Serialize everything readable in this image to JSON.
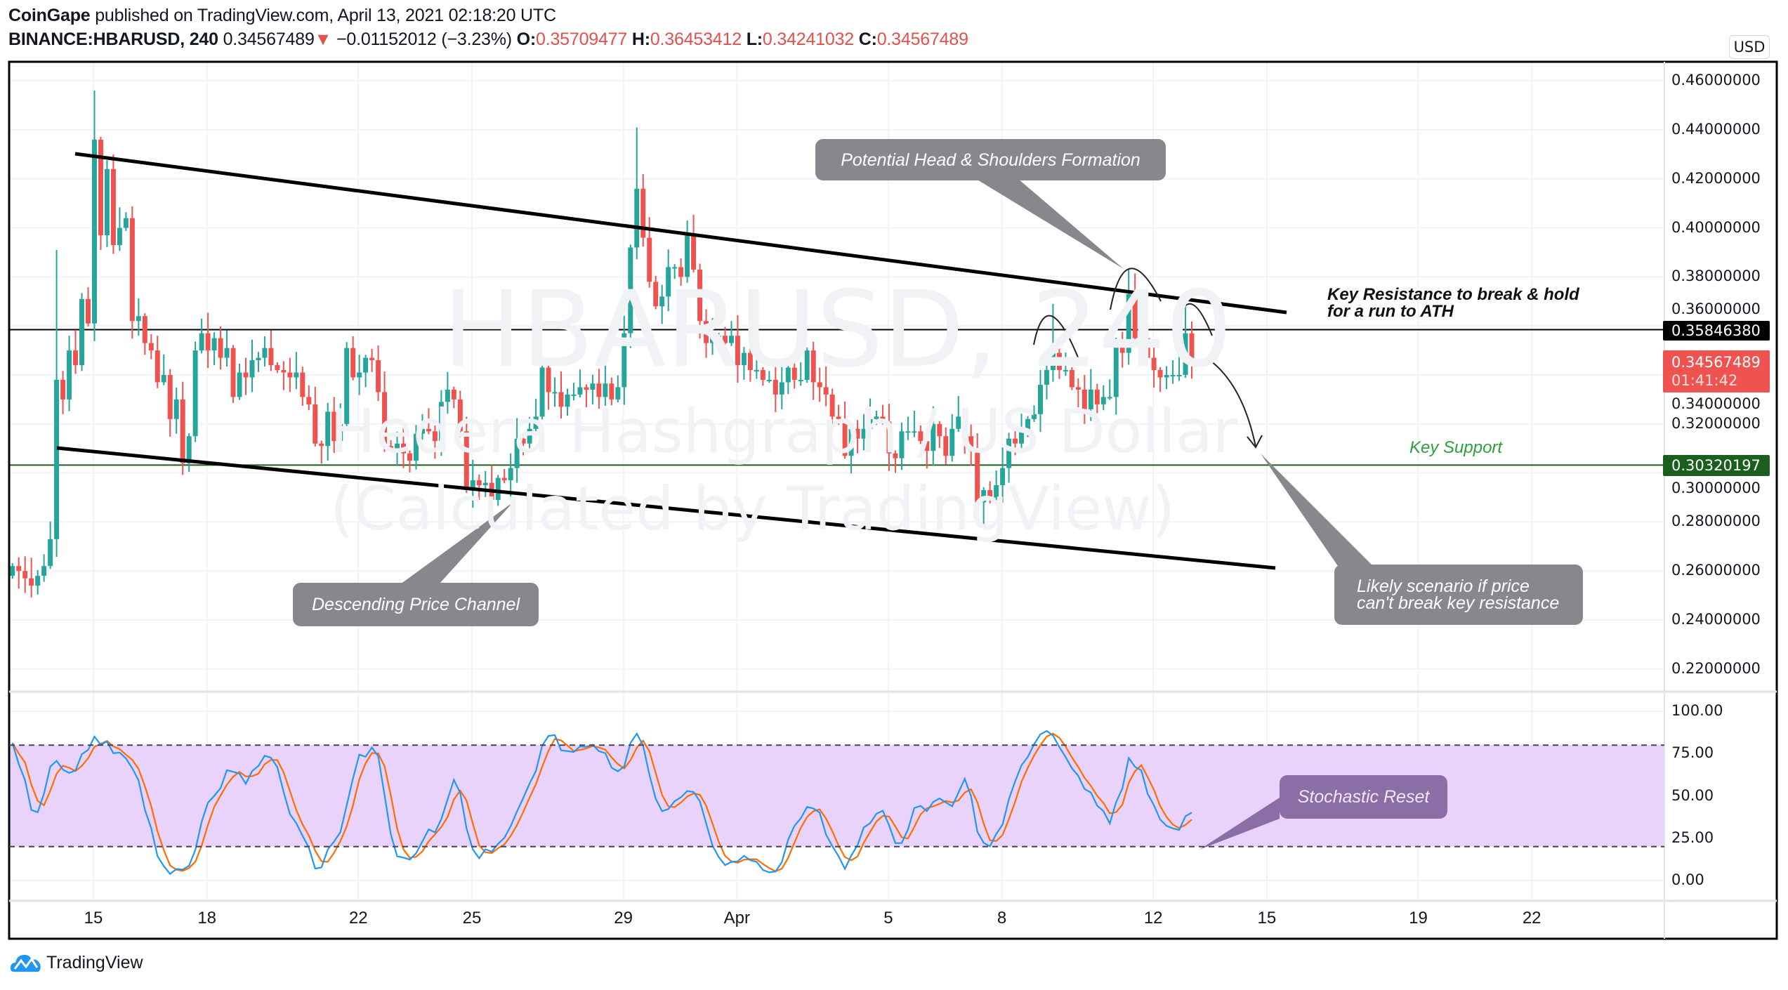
{
  "header": {
    "publisher": "CoinGape",
    "published_text": "published on TradingView.com, April 13, 2021 02:18:20 UTC",
    "symbol": "BINANCE:HBARUSD, 240",
    "last": "0.34567489",
    "direction_icon": "▼",
    "change": "−0.01152012 (−3.23%)",
    "o_label": "O:",
    "o": "0.35709477",
    "h_label": "H:",
    "h": "0.36453412",
    "l_label": "L:",
    "l": "0.34241032",
    "c_label": "C:",
    "c": "0.34567489"
  },
  "watermark": {
    "symbol": "HBARUSD, 240",
    "description": "Hedera Hashgraph / US Dollar (Calculated by TradingView)"
  },
  "currency_badge": "USD",
  "badges": {
    "resistance": "0.35846380",
    "last_price": "0.34567489",
    "countdown": "01:41:42",
    "support": "0.30320197"
  },
  "annotations": {
    "head_shoulders": "Potential Head & Shoulders Formation",
    "channel": "Descending Price Channel",
    "scenario_line1": "Likely scenario if price",
    "scenario_line2": "can't break key resistance",
    "key_resistance_line1": "Key Resistance to break & hold",
    "key_resistance_line2": "for a run to ATH",
    "key_support": "Key Support",
    "stoch_reset": "Stochastic Reset"
  },
  "colors": {
    "up": "#26a69a",
    "down": "#ef5350",
    "stoch_k": "#2196f3",
    "stoch_d": "#ff6d00",
    "band": "#e9d3fa",
    "support": "#1b5e20",
    "support_text": "#2e9e3e",
    "resistance": "#000000"
  },
  "branding": "TradingView",
  "chart_data": {
    "type": "candlestick",
    "title": "BINANCE:HBARUSD, 240",
    "interval": "240",
    "price_axis": {
      "ylim": [
        0.21,
        0.46
      ],
      "ticks": [
        "0.46000000",
        "0.44000000",
        "0.42000000",
        "0.40000000",
        "0.38000000",
        "0.36000000",
        "0.34000000",
        "0.32000000",
        "0.30000000",
        "0.28000000",
        "0.26000000",
        "0.24000000",
        "0.22000000"
      ],
      "tick_values": [
        0.46,
        0.44,
        0.42,
        0.4,
        0.38,
        0.36,
        0.34,
        0.32,
        0.3,
        0.28,
        0.26,
        0.24,
        0.22
      ]
    },
    "time_axis": {
      "labels": [
        "15",
        "18",
        "22",
        "25",
        "29",
        "Apr",
        "5",
        "8",
        "12",
        "15",
        "19",
        "22"
      ],
      "day_offsets": [
        0,
        3,
        7,
        10,
        14,
        17,
        21,
        24,
        28,
        31,
        35,
        38
      ]
    },
    "first_open": 0.258,
    "closes": [
      0.262,
      0.26,
      0.257,
      0.254,
      0.258,
      0.262,
      0.273,
      0.338,
      0.33,
      0.35,
      0.344,
      0.371,
      0.361,
      0.436,
      0.397,
      0.424,
      0.393,
      0.4,
      0.404,
      0.362,
      0.364,
      0.353,
      0.35,
      0.337,
      0.34,
      0.322,
      0.33,
      0.304,
      0.315,
      0.35,
      0.357,
      0.35,
      0.355,
      0.347,
      0.351,
      0.331,
      0.341,
      0.339,
      0.346,
      0.347,
      0.351,
      0.344,
      0.342,
      0.341,
      0.339,
      0.341,
      0.331,
      0.328,
      0.312,
      0.311,
      0.325,
      0.313,
      0.32,
      0.351,
      0.339,
      0.341,
      0.347,
      0.346,
      0.333,
      0.311,
      0.31,
      0.312,
      0.308,
      0.305,
      0.316,
      0.318,
      0.317,
      0.313,
      0.329,
      0.334,
      0.33,
      0.317,
      0.293,
      0.297,
      0.295,
      0.296,
      0.289,
      0.298,
      0.297,
      0.302,
      0.314,
      0.312,
      0.318,
      0.323,
      0.343,
      0.333,
      0.333,
      0.327,
      0.332,
      0.332,
      0.335,
      0.334,
      0.3365,
      0.331,
      0.3365,
      0.33,
      0.335,
      0.357,
      0.392,
      0.416,
      0.396,
      0.378,
      0.368,
      0.372,
      0.384,
      0.384,
      0.38,
      0.397,
      0.383,
      0.362,
      0.353,
      0.356,
      0.356,
      0.353,
      0.356,
      0.344,
      0.349,
      0.342,
      0.342,
      0.338,
      0.338,
      0.332,
      0.337,
      0.343,
      0.338,
      0.338,
      0.35,
      0.337,
      0.335,
      0.332,
      0.323,
      0.322,
      0.307,
      0.318,
      0.314,
      0.318,
      0.322,
      0.323,
      0.321,
      0.308,
      0.306,
      0.317,
      0.317,
      0.317,
      0.313,
      0.309,
      0.32,
      0.315,
      0.307,
      0.318,
      0.323,
      0.315,
      0.309,
      0.288,
      0.293,
      0.29,
      0.295,
      0.302,
      0.314,
      0.312,
      0.317,
      0.322,
      0.324,
      0.336,
      0.342,
      0.349,
      0.342,
      0.342,
      0.335,
      0.334,
      0.326,
      0.334,
      0.328,
      0.331,
      0.331,
      0.354,
      0.349,
      0.373,
      0.355,
      0.355,
      0.347,
      0.342,
      0.339,
      0.34,
      0.34,
      0.34,
      0.357,
      0.34567489
    ],
    "wick_extremes": [
      {
        "index": 13,
        "high": 0.456
      },
      {
        "index": 7,
        "high": 0.391
      },
      {
        "index": 76,
        "low": 0.279
      },
      {
        "index": 99,
        "high": 0.441
      },
      {
        "index": 154,
        "low": 0.278
      },
      {
        "index": 165,
        "high": 0.369
      },
      {
        "index": 177,
        "high": 0.383
      },
      {
        "index": 186,
        "high": 0.368
      }
    ],
    "horizontal_levels": [
      {
        "name": "resistance",
        "value": 0.3584638
      },
      {
        "name": "support",
        "value": 0.30320197
      }
    ],
    "stochastic": {
      "k_length": 14,
      "k_smoothing": 3,
      "d_smoothing": 3,
      "upper_band": 80,
      "lower_band": 20,
      "ylim": [
        -10,
        110
      ],
      "ticks": [
        "100.00",
        "75.00",
        "50.00",
        "25.00",
        "0.00"
      ],
      "tick_values": [
        100,
        75,
        50,
        25,
        0
      ]
    }
  }
}
